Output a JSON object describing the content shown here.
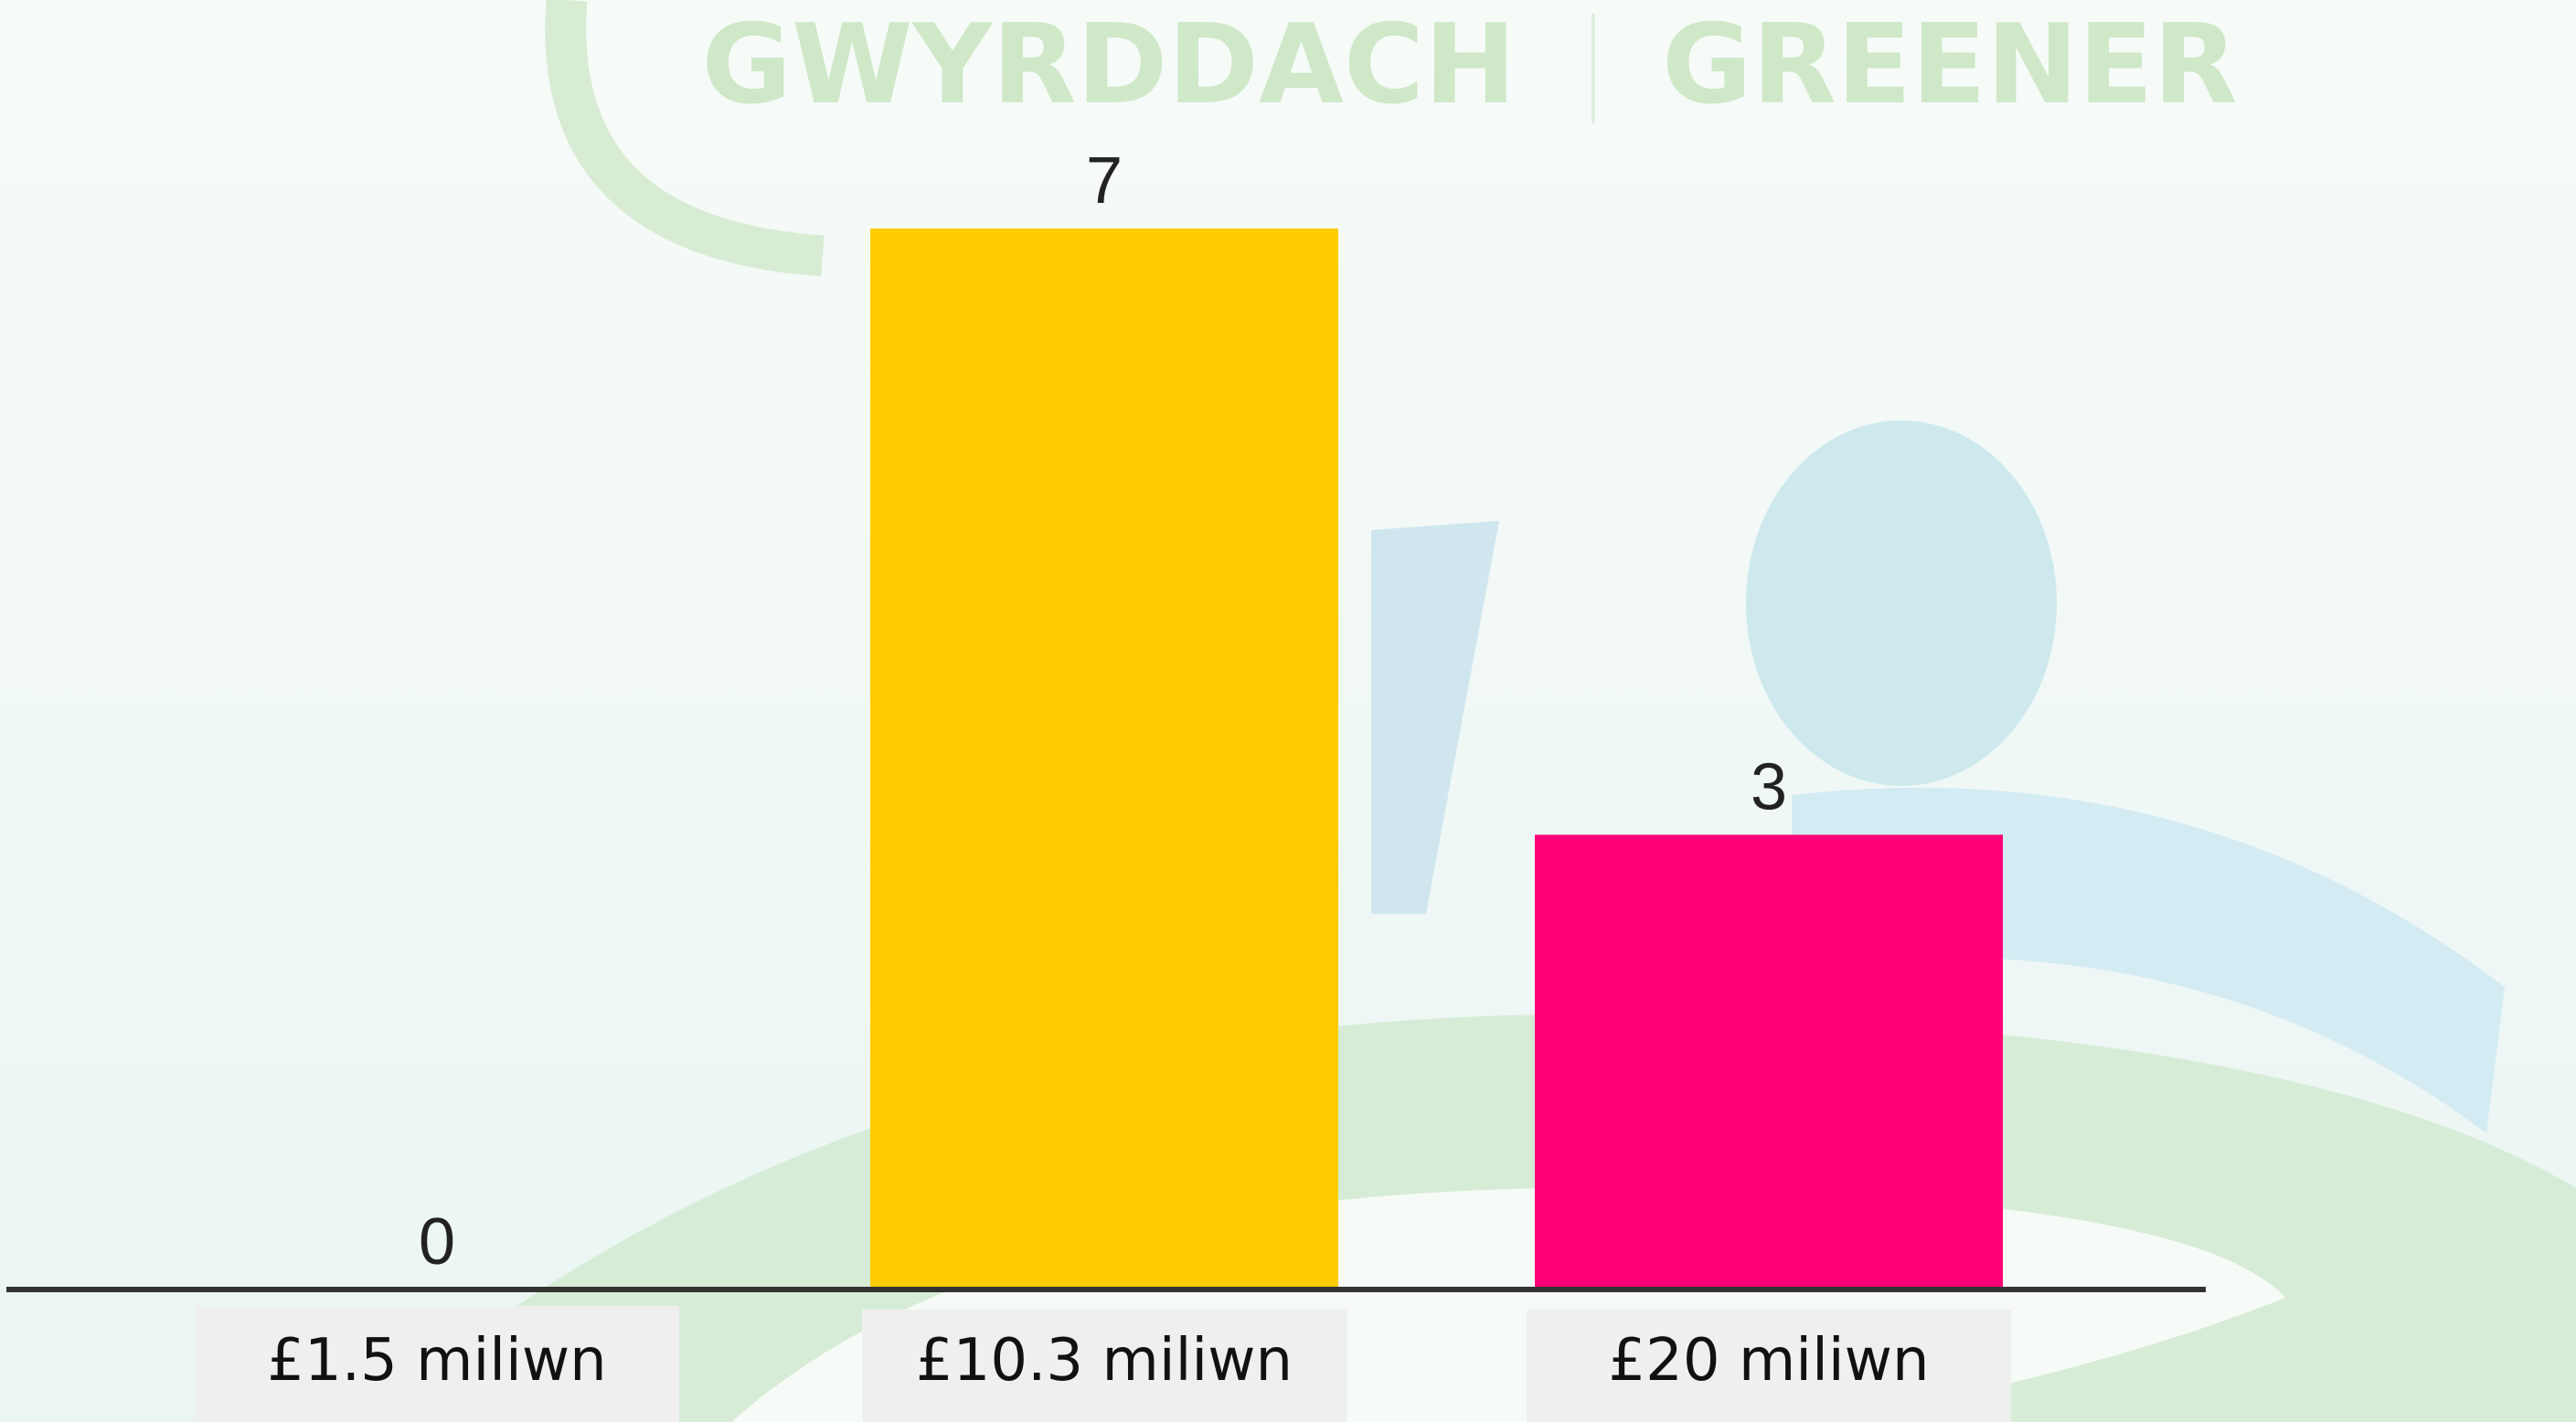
{
  "header": {
    "left": "GWYRDDACH",
    "right": "GREENER"
  },
  "chart_data": {
    "type": "bar",
    "categories": [
      "£1.5 miliwn",
      "£10.3 miliwn",
      "£20 miliwn"
    ],
    "values": [
      0,
      7,
      3
    ],
    "colors": [
      "#ffcc00",
      "#ffcc00",
      "#ff0077"
    ],
    "ylim": [
      0,
      7
    ]
  }
}
